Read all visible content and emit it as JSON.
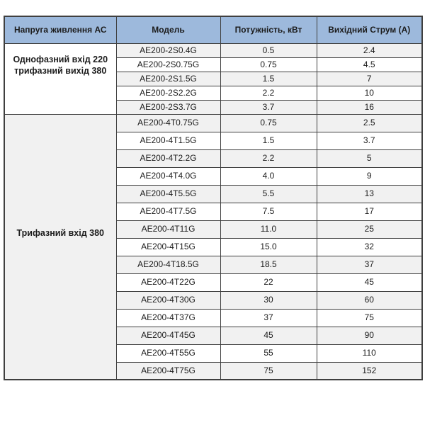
{
  "colors": {
    "header_bg": "#9db9dc",
    "stripe_bg": "#f1f1f1",
    "white_bg": "#ffffff",
    "border": "#3f3f3f",
    "text": "#1c1c1c"
  },
  "table": {
    "columns": {
      "voltage": "Напруга живлення АС",
      "model": "Модель",
      "power": "Потужність, кВт",
      "current": "Вихідний Струм (А)"
    },
    "groups": [
      {
        "label": "Однофазний вхід 220 трифазний вихід 380",
        "label_lines": [
          "Однофазний вхід 220",
          "трифазний вихід 380"
        ],
        "shaded": false,
        "rows": [
          {
            "model": "AE200-2S0.4G",
            "power": "0.5",
            "current": "2.4"
          },
          {
            "model": "AE200-2S0.75G",
            "power": "0.75",
            "current": "4.5"
          },
          {
            "model": "AE200-2S1.5G",
            "power": "1.5",
            "current": "7"
          },
          {
            "model": "AE200-2S2.2G",
            "power": "2.2",
            "current": "10"
          },
          {
            "model": "AE200-2S3.7G",
            "power": "3.7",
            "current": "16"
          }
        ]
      },
      {
        "label": "Трифазний вхід 380",
        "label_lines": [
          "Трифазний вхід 380"
        ],
        "shaded": true,
        "rows": [
          {
            "model": "AE200-4T0.75G",
            "power": "0.75",
            "current": "2.5"
          },
          {
            "model": "AE200-4T1.5G",
            "power": "1.5",
            "current": "3.7"
          },
          {
            "model": "AE200-4T2.2G",
            "power": "2.2",
            "current": "5"
          },
          {
            "model": "AE200-4T4.0G",
            "power": "4.0",
            "current": "9"
          },
          {
            "model": "AE200-4T5.5G",
            "power": "5.5",
            "current": "13"
          },
          {
            "model": "AE200-4T7.5G",
            "power": "7.5",
            "current": "17"
          },
          {
            "model": "AE200-4T11G",
            "power": "11.0",
            "current": "25"
          },
          {
            "model": "AE200-4T15G",
            "power": "15.0",
            "current": "32"
          },
          {
            "model": "AE200-4T18.5G",
            "power": "18.5",
            "current": "37"
          },
          {
            "model": "AE200-4T22G",
            "power": "22",
            "current": "45"
          },
          {
            "model": "AE200-4T30G",
            "power": "30",
            "current": "60"
          },
          {
            "model": "AE200-4T37G",
            "power": "37",
            "current": "75"
          },
          {
            "model": "AE200-4T45G",
            "power": "45",
            "current": "90"
          },
          {
            "model": "AE200-4T55G",
            "power": "55",
            "current": "110"
          },
          {
            "model": "AE200-4T75G",
            "power": "75",
            "current": "152"
          }
        ]
      }
    ]
  }
}
